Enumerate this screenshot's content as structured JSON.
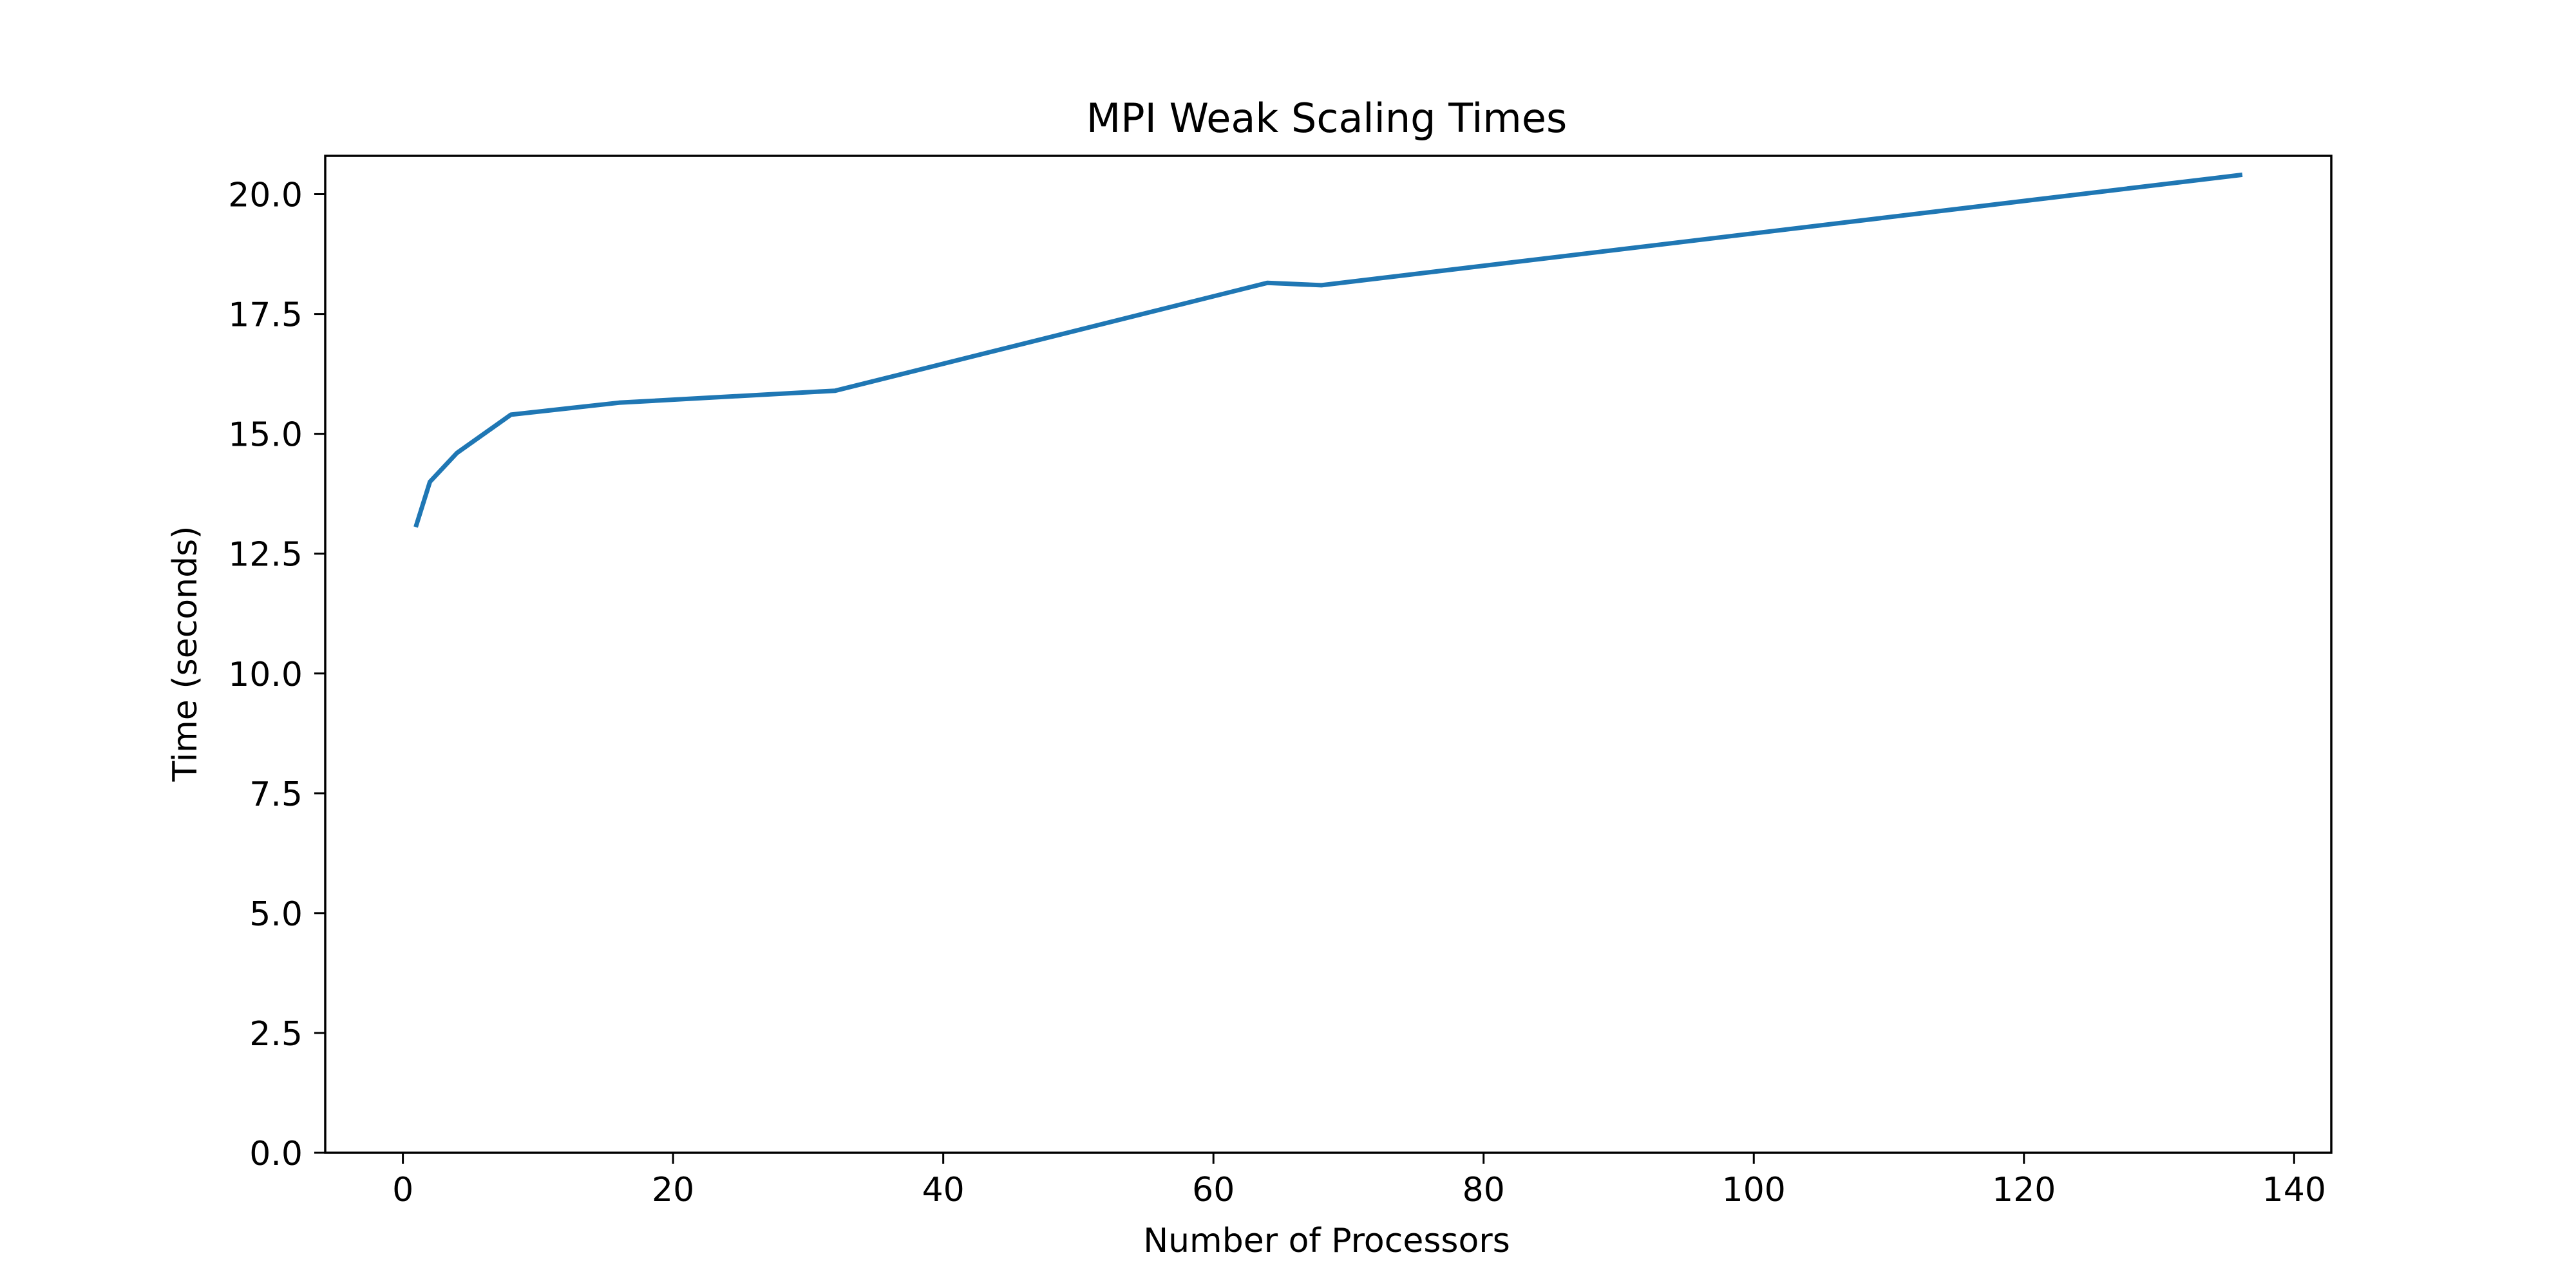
{
  "chart_data": {
    "type": "line",
    "title": "MPI Weak Scaling Times",
    "xlabel": "Number of Processors",
    "ylabel": "Time (seconds)",
    "xlim": [
      -5.75,
      142.75
    ],
    "ylim": [
      0,
      20.8
    ],
    "xticks": [
      0,
      20,
      40,
      60,
      80,
      100,
      120,
      140
    ],
    "yticks": [
      0,
      2.5,
      5,
      7.5,
      10,
      12.5,
      15,
      17.5,
      20
    ],
    "xtick_labels": [
      "0",
      "20",
      "40",
      "60",
      "80",
      "100",
      "120",
      "140"
    ],
    "ytick_labels": [
      "0.0",
      "2.5",
      "5.0",
      "7.5",
      "10.0",
      "12.5",
      "15.0",
      "17.5",
      "20.0"
    ],
    "grid": false,
    "series": [
      {
        "color": "#1f77b4",
        "x": [
          1,
          2,
          4,
          8,
          16,
          32,
          64,
          68,
          136
        ],
        "y": [
          13.1,
          14.0,
          14.6,
          15.4,
          15.65,
          15.9,
          18.15,
          18.1,
          20.4
        ]
      }
    ]
  }
}
